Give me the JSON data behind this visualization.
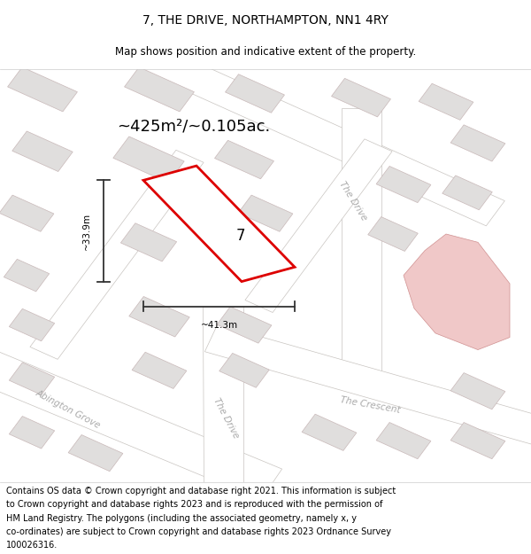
{
  "title": "7, THE DRIVE, NORTHAMPTON, NN1 4RY",
  "subtitle": "Map shows position and indicative extent of the property.",
  "area_label": "~425m²/~0.105ac.",
  "width_label": "~41.3m",
  "height_label": "~33.9m",
  "property_number": "7",
  "footer_lines": [
    "Contains OS data © Crown copyright and database right 2021. This information is subject",
    "to Crown copyright and database rights 2023 and is reproduced with the permission of",
    "HM Land Registry. The polygons (including the associated geometry, namely x, y",
    "co-ordinates) are subject to Crown copyright and database rights 2023 Ordnance Survey",
    "100026316."
  ],
  "bg_color": "#eeeceb",
  "road_fill": "#ffffff",
  "road_edge": "#c8c4c0",
  "building_fill": "#e0dedd",
  "building_edge": "#c8b8b8",
  "prop_outline": "#dd0000",
  "prop_fill": "#ffffff",
  "pink_fill": "#f0c8c8",
  "pink_edge": "#d09090",
  "street_color": "#aaaaaa",
  "title_fontsize": 10,
  "subtitle_fontsize": 8.5,
  "area_fontsize": 13,
  "dim_fontsize": 7.5,
  "street_fontsize": 7.5,
  "footer_fontsize": 7.0
}
